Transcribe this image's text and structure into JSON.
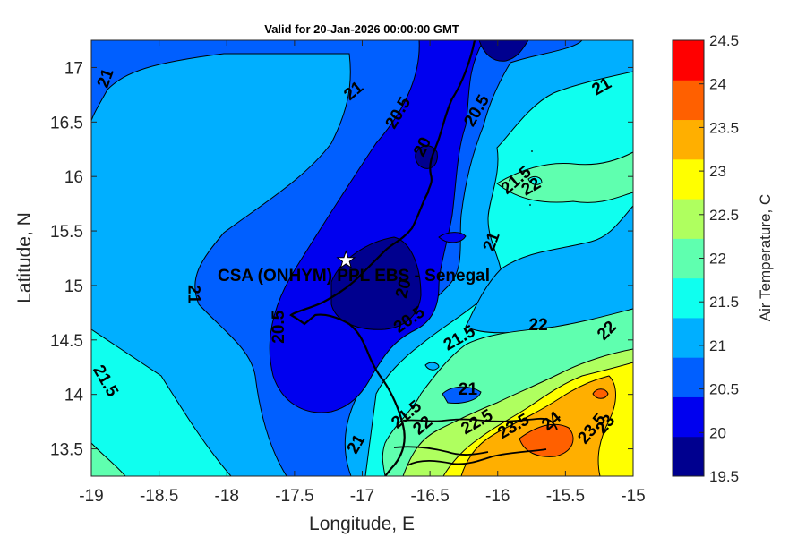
{
  "title": "Valid for 20-Jan-2026 00:00:00 GMT",
  "xlabel": "Longitude, E",
  "ylabel": "Latitude, N",
  "colorbar_label": "Air Temperature, C",
  "station": {
    "name": "CSA (ONHYM) PPL EBS  - Senegal",
    "lon": -17.12,
    "lat": 15.23
  },
  "chart_data": {
    "type": "heatmap",
    "title": "Valid for 20-Jan-2026 00:00:00 GMT",
    "xlabel": "Longitude, E",
    "ylabel": "Latitude, N",
    "xlim": [
      -19,
      -15
    ],
    "ylim": [
      13.25,
      17.25
    ],
    "xticks": [
      "-19",
      "-18.5",
      "-18",
      "-17.5",
      "-17",
      "-16.5",
      "-16",
      "-15.5",
      "-15"
    ],
    "xtick_values": [
      -19,
      -18.5,
      -18,
      -17.5,
      -17,
      -16.5,
      -16,
      -15.5,
      -15
    ],
    "yticks": [
      "13.5",
      "14",
      "14.5",
      "15",
      "15.5",
      "16",
      "16.5",
      "17"
    ],
    "ytick_values": [
      13.5,
      14,
      14.5,
      15,
      15.5,
      16,
      16.5,
      17
    ],
    "colorbar": {
      "label": "Air Temperature, C",
      "range": [
        19.5,
        24.5
      ],
      "ticks": [
        "19.5",
        "20",
        "20.5",
        "21",
        "21.5",
        "22",
        "22.5",
        "23",
        "23.5",
        "24",
        "24.5"
      ],
      "tick_values": [
        19.5,
        20,
        20.5,
        21,
        21.5,
        22,
        22.5,
        23,
        23.5,
        24,
        24.5
      ],
      "colors": [
        "#00008f",
        "#0000ef",
        "#005fff",
        "#00afff",
        "#0fffef",
        "#5fffaf",
        "#afff5f",
        "#ffff00",
        "#ffaf00",
        "#ff6000",
        "#ff0000"
      ]
    },
    "contour_labels": [
      {
        "text": "21",
        "lon": -18.89,
        "lat": 16.9,
        "rot": -70
      },
      {
        "text": "21",
        "lon": -17.06,
        "lat": 16.78,
        "rot": -40
      },
      {
        "text": "20.5",
        "lon": -16.73,
        "lat": 16.58,
        "rot": -60
      },
      {
        "text": "20",
        "lon": -16.55,
        "lat": 16.27,
        "rot": -65
      },
      {
        "text": "20.5",
        "lon": -16.15,
        "lat": 16.6,
        "rot": -60
      },
      {
        "text": "21",
        "lon": -15.23,
        "lat": 16.82,
        "rot": -30
      },
      {
        "text": "21.5",
        "lon": -15.86,
        "lat": 15.96,
        "rot": -40
      },
      {
        "text": "22",
        "lon": -15.75,
        "lat": 15.9,
        "rot": -30
      },
      {
        "text": "21",
        "lon": -16.04,
        "lat": 15.4,
        "rot": -70
      },
      {
        "text": "20",
        "lon": -16.69,
        "lat": 14.97,
        "rot": -75
      },
      {
        "text": "20.5",
        "lon": -16.65,
        "lat": 14.68,
        "rot": -35
      },
      {
        "text": "21.5",
        "lon": -16.28,
        "lat": 14.51,
        "rot": -30
      },
      {
        "text": "22",
        "lon": -15.7,
        "lat": 14.63,
        "rot": 0
      },
      {
        "text": "22",
        "lon": -15.19,
        "lat": 14.58,
        "rot": -45
      },
      {
        "text": "21",
        "lon": -18.25,
        "lat": 14.92,
        "rot": 90
      },
      {
        "text": "20.5",
        "lon": -17.61,
        "lat": 14.62,
        "rot": -90
      },
      {
        "text": "21.5",
        "lon": -18.9,
        "lat": 14.12,
        "rot": 60
      },
      {
        "text": "21",
        "lon": -16.22,
        "lat": 14.04,
        "rot": 0
      },
      {
        "text": "21.5",
        "lon": -16.67,
        "lat": 13.81,
        "rot": -40
      },
      {
        "text": "22",
        "lon": -16.55,
        "lat": 13.71,
        "rot": -40
      },
      {
        "text": "22.5",
        "lon": -16.15,
        "lat": 13.74,
        "rot": -30
      },
      {
        "text": "23.5",
        "lon": -15.88,
        "lat": 13.7,
        "rot": -30
      },
      {
        "text": "24",
        "lon": -15.6,
        "lat": 13.75,
        "rot": -40
      },
      {
        "text": "23.5",
        "lon": -15.3,
        "lat": 13.68,
        "rot": -50
      },
      {
        "text": "23",
        "lon": -15.2,
        "lat": 13.72,
        "rot": -50
      },
      {
        "text": "21",
        "lon": -17.04,
        "lat": 13.54,
        "rot": -60
      }
    ]
  }
}
